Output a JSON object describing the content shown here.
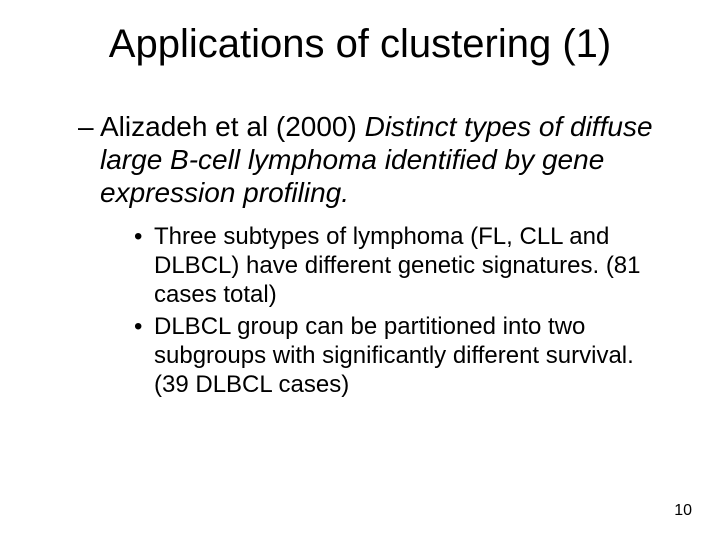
{
  "slide": {
    "background_color": "#ffffff",
    "text_color": "#000000",
    "font_family": "Arial",
    "title": {
      "text": "Applications of clustering (1)",
      "fontsize": 40,
      "weight": "normal",
      "align": "center"
    },
    "level1": {
      "bullet_char": "–",
      "fontsize": 28,
      "prefix": "Alizadeh et al (2000) ",
      "italic_part": "Distinct types of diffuse large  B-cell lymphoma identified by  gene expression profiling."
    },
    "sublist": {
      "bullet_char": "•",
      "fontsize": 24,
      "items": [
        "Three subtypes of lymphoma (FL, CLL and DLBCL) have different genetic signatures. (81 cases total)",
        "DLBCL group can be partitioned into two subgroups with significantly different survival. (39 DLBCL cases)"
      ]
    },
    "page_number": "10",
    "page_number_fontsize": 16
  }
}
